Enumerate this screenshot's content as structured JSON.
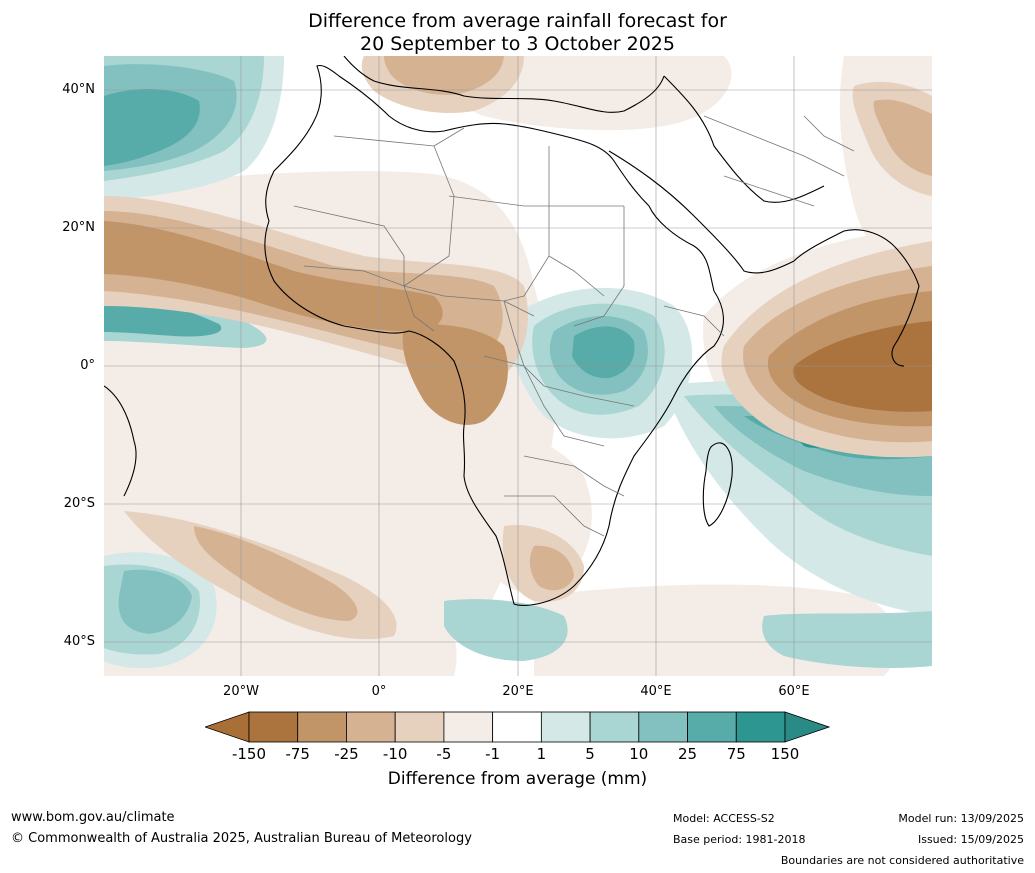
{
  "title": {
    "line1": "Difference from average rainfall forecast for",
    "line2": "20 September to 3 October 2025"
  },
  "axes": {
    "lat_labels": [
      "40°N",
      "20°N",
      "0°",
      "20°S",
      "40°S"
    ],
    "lon_labels": [
      "20°W",
      "0°",
      "20°E",
      "40°E",
      "60°E"
    ]
  },
  "colorbar": {
    "title": "Difference from average (mm)",
    "tick_labels": [
      "-150",
      "-75",
      "-25",
      "-10",
      "-5",
      "-1",
      "1",
      "5",
      "10",
      "25",
      "75",
      "150"
    ],
    "colors": {
      "below_150": "#a86f37",
      "d150_75": "#ab733d",
      "d75_25": "#c19568",
      "d25_10": "#d5b291",
      "d10_5": "#e6d1bf",
      "d5_1": "#f4ece6",
      "neutral": "#ffffff",
      "w1_5": "#d3e8e7",
      "w5_10": "#a9d5d3",
      "w10_25": "#82c1bf",
      "w25_75": "#57aba8",
      "w75_150": "#2e9691",
      "above_150": "#2a8a85"
    }
  },
  "footer": {
    "website": "www.bom.gov.au/climate",
    "copyright": "© Commonwealth of Australia 2025, Australian Bureau of Meteorology",
    "model": "Model: ACCESS-S2",
    "base_period": "Base period: 1981-2018",
    "model_run": "Model run: 13/09/2025",
    "issued": "Issued: 15/09/2025",
    "disclaimer": "Boundaries are not considered authoritative"
  }
}
